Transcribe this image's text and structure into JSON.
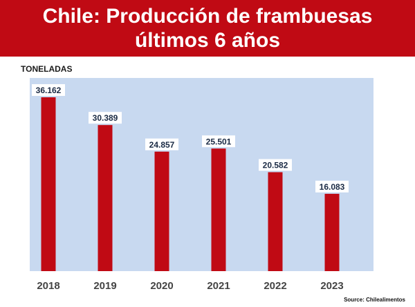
{
  "header": {
    "title_line1": "Chile: Producción de frambuesas",
    "title_line2": "últimos 6 años"
  },
  "source": "Source: Chilealimentos",
  "colors": {
    "header_bg": "#c00a14",
    "plot_bg": "#c8d9f0",
    "bar": "#c00a14",
    "label_text": "#1a2a44"
  },
  "chart_data": {
    "type": "bar",
    "title": "Chile: Producción de frambuesas últimos 6 años",
    "ylabel": "TONELADAS",
    "xlabel": "",
    "categories": [
      "2018",
      "2019",
      "2020",
      "2021",
      "2022",
      "2023"
    ],
    "values": [
      36162,
      30389,
      24857,
      25501,
      20582,
      16083
    ],
    "value_labels": [
      "36.162",
      "30.389",
      "24.857",
      "25.501",
      "20.582",
      "16.083"
    ],
    "ylim": [
      0,
      36162
    ],
    "grid": false,
    "legend": "none"
  }
}
